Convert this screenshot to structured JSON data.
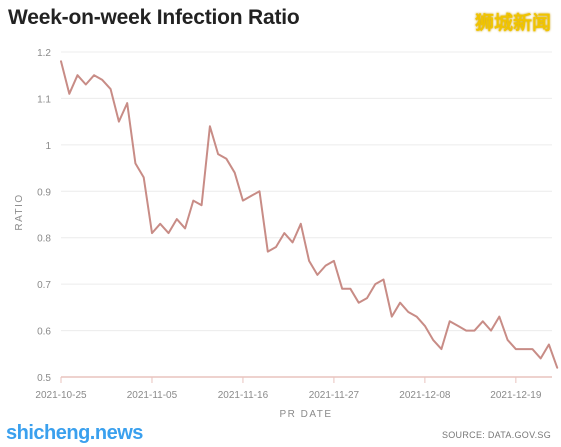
{
  "brand": {
    "top_mark": "狮城新闻",
    "bottom_mark": "shicheng.news"
  },
  "colors": {
    "line": "#c88c86",
    "grid": "#ececec",
    "axis": "#e9c3be"
  },
  "source_note": "SOURCE: DATA.GOV.SG",
  "chart_data": {
    "type": "line",
    "title": "Week-on-week Infection Ratio",
    "xlabel": "PR DATE",
    "ylabel": "RATIO",
    "x_ticks": [
      "2021-10-25",
      "2021-11-05",
      "2021-11-16",
      "2021-11-27",
      "2021-12-08",
      "2021-12-19"
    ],
    "y_ticks": [
      "0.5",
      "0.6",
      "0.7",
      "0.8",
      "0.9",
      "1",
      "1.1",
      "1.2"
    ],
    "ylim": [
      0.5,
      1.2
    ],
    "xlim": [
      "2021-10-25",
      "2021-12-24"
    ],
    "grid": "horizontal",
    "series": [
      {
        "x": [
          "2021-10-25",
          "2021-10-26",
          "2021-10-27",
          "2021-10-28",
          "2021-10-29",
          "2021-10-30",
          "2021-10-31",
          "2021-11-01",
          "2021-11-02",
          "2021-11-03",
          "2021-11-04",
          "2021-11-05",
          "2021-11-06",
          "2021-11-07",
          "2021-11-08",
          "2021-11-09",
          "2021-11-10",
          "2021-11-11",
          "2021-11-12",
          "2021-11-13",
          "2021-11-14",
          "2021-11-15",
          "2021-11-16",
          "2021-11-17",
          "2021-11-18",
          "2021-11-19",
          "2021-11-20",
          "2021-11-21",
          "2021-11-22",
          "2021-11-23",
          "2021-11-24",
          "2021-11-25",
          "2021-11-26",
          "2021-11-27",
          "2021-11-28",
          "2021-11-29",
          "2021-11-30",
          "2021-12-01",
          "2021-12-02",
          "2021-12-03",
          "2021-12-04",
          "2021-12-05",
          "2021-12-06",
          "2021-12-07",
          "2021-12-08",
          "2021-12-09",
          "2021-12-10",
          "2021-12-11",
          "2021-12-12",
          "2021-12-13",
          "2021-12-14",
          "2021-12-15",
          "2021-12-16",
          "2021-12-17",
          "2021-12-18",
          "2021-12-19",
          "2021-12-20",
          "2021-12-21",
          "2021-12-22",
          "2021-12-23",
          "2021-12-24"
        ],
        "values": [
          1.18,
          1.11,
          1.15,
          1.13,
          1.15,
          1.14,
          1.12,
          1.05,
          1.09,
          0.96,
          0.93,
          0.81,
          0.83,
          0.81,
          0.84,
          0.82,
          0.88,
          0.87,
          1.04,
          0.98,
          0.97,
          0.94,
          0.88,
          0.89,
          0.9,
          0.77,
          0.78,
          0.81,
          0.79,
          0.83,
          0.75,
          0.72,
          0.74,
          0.75,
          0.69,
          0.69,
          0.66,
          0.67,
          0.7,
          0.71,
          0.63,
          0.66,
          0.64,
          0.63,
          0.61,
          0.58,
          0.56,
          0.62,
          0.61,
          0.6,
          0.6,
          0.62,
          0.6,
          0.63,
          0.58,
          0.56,
          0.56,
          0.56,
          0.54,
          0.57,
          0.52
        ]
      }
    ]
  }
}
